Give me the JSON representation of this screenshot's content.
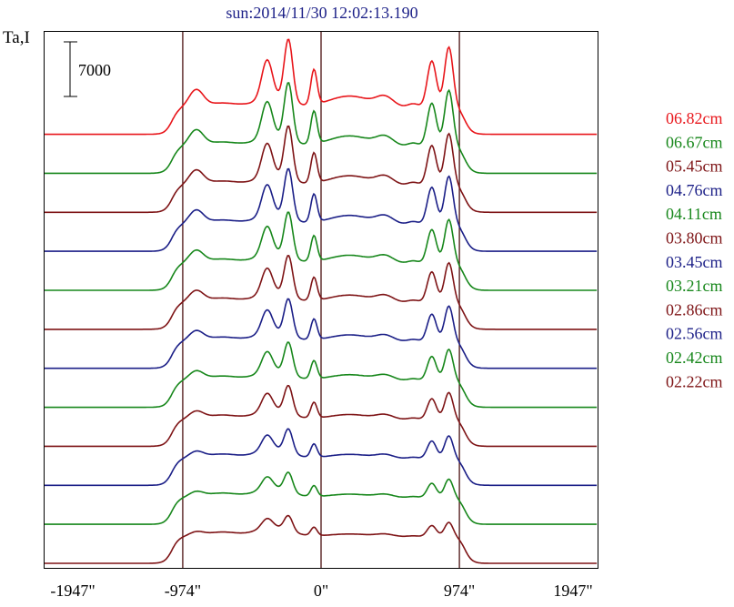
{
  "chart_data": {
    "type": "line",
    "title": "sun:2014/11/30 12:02:13.190",
    "ylabel": "Ta,I",
    "scale_bar_label": "7000",
    "x_tick_labels": [
      "-1947\"",
      "-974\"",
      "0\"",
      "974\"",
      "1947\""
    ],
    "x_ticks": [
      -1947,
      -974,
      0,
      974,
      1947
    ],
    "xlim": [
      -1947,
      1947
    ],
    "vertical_lines": [
      -974,
      0,
      974
    ],
    "legend_position": "right",
    "offset_per_series": 5000,
    "series": [
      {
        "name": "06.82cm",
        "color": "#e8161b",
        "baseline": 55000,
        "peak_scale": 1.0
      },
      {
        "name": "06.67cm",
        "color": "#17871b",
        "baseline": 50000,
        "peak_scale": 0.93
      },
      {
        "name": "05.45cm",
        "color": "#7e1416",
        "baseline": 45000,
        "peak_scale": 0.86
      },
      {
        "name": "04.76cm",
        "color": "#1b1f87",
        "baseline": 40000,
        "peak_scale": 0.8
      },
      {
        "name": "04.11cm",
        "color": "#17871b",
        "baseline": 35000,
        "peak_scale": 0.73
      },
      {
        "name": "03.80cm",
        "color": "#7e1416",
        "baseline": 30000,
        "peak_scale": 0.66
      },
      {
        "name": "03.45cm",
        "color": "#1b1f87",
        "baseline": 25000,
        "peak_scale": 0.59
      },
      {
        "name": "03.21cm",
        "color": "#17871b",
        "baseline": 20000,
        "peak_scale": 0.52
      },
      {
        "name": "02.86cm",
        "color": "#7e1416",
        "baseline": 15000,
        "peak_scale": 0.45
      },
      {
        "name": "02.56cm",
        "color": "#1b1f87",
        "baseline": 10000,
        "peak_scale": 0.38
      },
      {
        "name": "02.42cm",
        "color": "#17871b",
        "baseline": 5000,
        "peak_scale": 0.31
      },
      {
        "name": "02.22cm",
        "color": "#7e1416",
        "baseline": 0,
        "peak_scale": 0.24
      }
    ]
  },
  "colors": {
    "title": "#1b1f87",
    "axis": "#000000",
    "divider": "#4a1010"
  }
}
